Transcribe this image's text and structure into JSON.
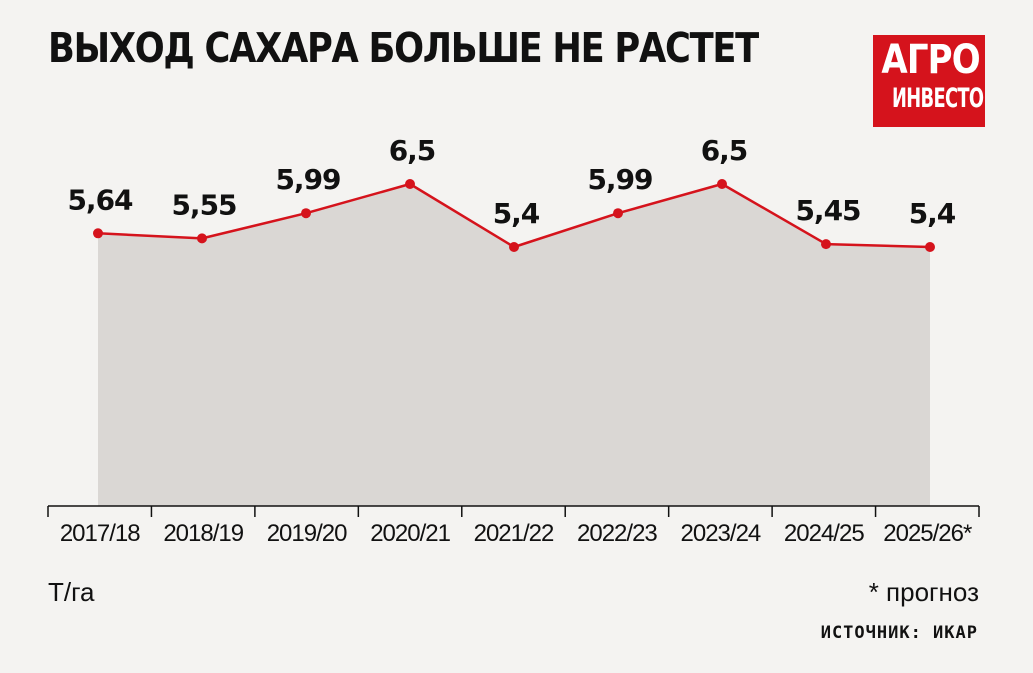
{
  "title": "ВЫХОД САХАРА БОЛЬШЕ НЕ РАСТЕТ",
  "logo": {
    "line1": "АГРО",
    "line2": "ИНВЕСТОР",
    "color": "#d5131c"
  },
  "unit_label": "Т/га",
  "footnote": "* прогноз",
  "source": "ИСТОЧНИК: ИКАР",
  "colors": {
    "line": "#d5131c",
    "area": "#dad7d4",
    "axis": "#111111"
  },
  "chart_data": {
    "type": "area",
    "title": "ВЫХОД САХАРА БОЛЬШЕ НЕ РАСТЕТ",
    "ylabel": "Т/га",
    "xlabel": "",
    "ylim": [
      0,
      6.5
    ],
    "grid": false,
    "categories": [
      "2017/18",
      "2018/19",
      "2019/20",
      "2020/21",
      "2021/22",
      "2022/23",
      "2023/24",
      "2024/25",
      "2025/26*"
    ],
    "values": [
      5.64,
      5.55,
      5.99,
      6.5,
      5.4,
      5.99,
      6.5,
      5.45,
      5.4
    ],
    "value_labels": [
      "5,64",
      "5,55",
      "5,99",
      "6,5",
      "5,4",
      "5,99",
      "6,5",
      "5,45",
      "5,4"
    ]
  }
}
